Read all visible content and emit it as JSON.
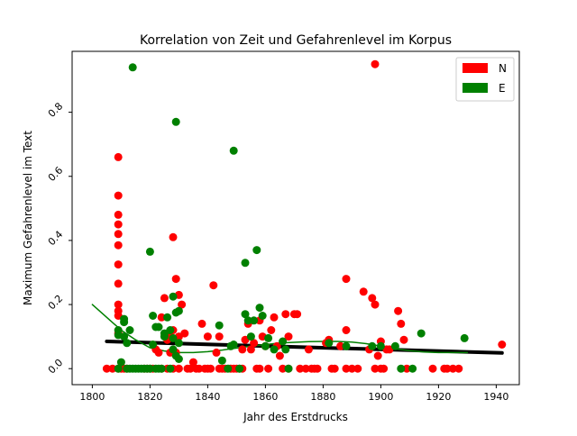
{
  "chart_data": {
    "type": "scatter",
    "title": "Korrelation von Zeit und Gefahrenlevel im Korpus",
    "xlabel": "Jahr des Erstdrucks",
    "ylabel": "Maximum Gefahrenlevel im Text",
    "xlim": [
      1793,
      1948
    ],
    "ylim": [
      -0.05,
      0.99
    ],
    "x_ticks": [
      1800,
      1820,
      1840,
      1860,
      1880,
      1900,
      1920,
      1940
    ],
    "y_ticks": [
      0.0,
      0.2,
      0.4,
      0.6,
      0.8
    ],
    "y_tick_labels": [
      "0.0",
      "0.2",
      "0.4",
      "0.6",
      "0.8"
    ],
    "grid": false,
    "legend_position": "top-right",
    "colors": {
      "N": "#ff0000",
      "E": "#008000",
      "trend": "#000000"
    },
    "series": [
      {
        "name": "N",
        "color": "#ff0000",
        "points": [
          [
            1805,
            0
          ],
          [
            1807,
            0
          ],
          [
            1809,
            0
          ],
          [
            1809,
            0.66
          ],
          [
            1809,
            0.54
          ],
          [
            1809,
            0.48
          ],
          [
            1809,
            0.45
          ],
          [
            1809,
            0.42
          ],
          [
            1809,
            0.385
          ],
          [
            1809,
            0.325
          ],
          [
            1809,
            0.265
          ],
          [
            1809,
            0.2
          ],
          [
            1809,
            0.18
          ],
          [
            1809,
            0.165
          ],
          [
            1809,
            0.11
          ],
          [
            1810,
            0
          ],
          [
            1811,
            0
          ],
          [
            1812,
            0
          ],
          [
            1818,
            0
          ],
          [
            1819,
            0
          ],
          [
            1820,
            0
          ],
          [
            1821,
            0
          ],
          [
            1822,
            0.06
          ],
          [
            1823,
            0.05
          ],
          [
            1824,
            0
          ],
          [
            1824,
            0.16
          ],
          [
            1825,
            0.22
          ],
          [
            1826,
            0.09
          ],
          [
            1826,
            0
          ],
          [
            1827,
            0.05
          ],
          [
            1827,
            0.1
          ],
          [
            1828,
            0.41
          ],
          [
            1828,
            0.12
          ],
          [
            1828,
            0
          ],
          [
            1829,
            0.28
          ],
          [
            1829,
            0.05
          ],
          [
            1830,
            0.23
          ],
          [
            1830,
            0.1
          ],
          [
            1830,
            0
          ],
          [
            1831,
            0.2
          ],
          [
            1832,
            0.11
          ],
          [
            1833,
            0
          ],
          [
            1834,
            0
          ],
          [
            1835,
            0.02
          ],
          [
            1836,
            0
          ],
          [
            1837,
            0
          ],
          [
            1838,
            0.14
          ],
          [
            1839,
            0
          ],
          [
            1840,
            0.1
          ],
          [
            1840,
            0
          ],
          [
            1841,
            0
          ],
          [
            1842,
            0.26
          ],
          [
            1843,
            0.05
          ],
          [
            1844,
            0.1
          ],
          [
            1844,
            0
          ],
          [
            1845,
            0
          ],
          [
            1846,
            0
          ],
          [
            1848,
            0
          ],
          [
            1849,
            0
          ],
          [
            1850,
            0
          ],
          [
            1851,
            0
          ],
          [
            1852,
            0.06
          ],
          [
            1852,
            0
          ],
          [
            1853,
            0.09
          ],
          [
            1854,
            0.14
          ],
          [
            1855,
            0.06
          ],
          [
            1856,
            0.08
          ],
          [
            1857,
            0
          ],
          [
            1858,
            0.15
          ],
          [
            1858,
            0
          ],
          [
            1859,
            0.1
          ],
          [
            1860,
            0.07
          ],
          [
            1861,
            0
          ],
          [
            1862,
            0.12
          ],
          [
            1863,
            0.16
          ],
          [
            1864,
            0.07
          ],
          [
            1865,
            0.04
          ],
          [
            1866,
            0
          ],
          [
            1867,
            0.17
          ],
          [
            1868,
            0.1
          ],
          [
            1868,
            0
          ],
          [
            1870,
            0.17
          ],
          [
            1871,
            0.17
          ],
          [
            1872,
            0
          ],
          [
            1874,
            0
          ],
          [
            1875,
            0.06
          ],
          [
            1876,
            0
          ],
          [
            1877,
            0
          ],
          [
            1878,
            0
          ],
          [
            1881,
            0.08
          ],
          [
            1882,
            0.09
          ],
          [
            1883,
            0
          ],
          [
            1884,
            0
          ],
          [
            1886,
            0.07
          ],
          [
            1888,
            0.28
          ],
          [
            1888,
            0.12
          ],
          [
            1888,
            0
          ],
          [
            1890,
            0
          ],
          [
            1892,
            0
          ],
          [
            1894,
            0.24
          ],
          [
            1896,
            0.06
          ],
          [
            1897,
            0.22
          ],
          [
            1898,
            0.95
          ],
          [
            1898,
            0.2
          ],
          [
            1898,
            0
          ],
          [
            1899,
            0.04
          ],
          [
            1900,
            0.085
          ],
          [
            1900,
            0
          ],
          [
            1901,
            0
          ],
          [
            1902,
            0.06
          ],
          [
            1903,
            0.06
          ],
          [
            1906,
            0.18
          ],
          [
            1907,
            0.14
          ],
          [
            1908,
            0.09
          ],
          [
            1909,
            0
          ],
          [
            1918,
            0
          ],
          [
            1922,
            0
          ],
          [
            1923,
            0
          ],
          [
            1925,
            0
          ],
          [
            1927,
            0
          ],
          [
            1942,
            0.075
          ]
        ]
      },
      {
        "name": "E",
        "color": "#008000",
        "points": [
          [
            1809,
            0.12
          ],
          [
            1809,
            0.105
          ],
          [
            1809,
            0
          ],
          [
            1810,
            0.02
          ],
          [
            1811,
            0.155
          ],
          [
            1811,
            0.145
          ],
          [
            1811,
            0.1
          ],
          [
            1812,
            0.08
          ],
          [
            1812,
            0
          ],
          [
            1813,
            0.12
          ],
          [
            1813,
            0
          ],
          [
            1814,
            0.94
          ],
          [
            1814,
            0
          ],
          [
            1815,
            0
          ],
          [
            1816,
            0
          ],
          [
            1817,
            0
          ],
          [
            1818,
            0
          ],
          [
            1819,
            0
          ],
          [
            1820,
            0.365
          ],
          [
            1820,
            0
          ],
          [
            1821,
            0.165
          ],
          [
            1821,
            0.075
          ],
          [
            1822,
            0.13
          ],
          [
            1822,
            0
          ],
          [
            1823,
            0.13
          ],
          [
            1823,
            0
          ],
          [
            1824,
            0
          ],
          [
            1825,
            0.11
          ],
          [
            1825,
            0.1
          ],
          [
            1826,
            0.16
          ],
          [
            1827,
            0.12
          ],
          [
            1827,
            0
          ],
          [
            1828,
            0.225
          ],
          [
            1828,
            0.095
          ],
          [
            1828,
            0.06
          ],
          [
            1829,
            0.77
          ],
          [
            1829,
            0.175
          ],
          [
            1829,
            0.04
          ],
          [
            1830,
            0.18
          ],
          [
            1830,
            0.08
          ],
          [
            1830,
            0.03
          ],
          [
            1844,
            0.135
          ],
          [
            1845,
            0.025
          ],
          [
            1847,
            0
          ],
          [
            1848,
            0.07
          ],
          [
            1849,
            0.68
          ],
          [
            1849,
            0.075
          ],
          [
            1851,
            0
          ],
          [
            1853,
            0.33
          ],
          [
            1853,
            0.17
          ],
          [
            1854,
            0.15
          ],
          [
            1855,
            0.1
          ],
          [
            1856,
            0.15
          ],
          [
            1857,
            0.37
          ],
          [
            1858,
            0.19
          ],
          [
            1859,
            0.165
          ],
          [
            1860,
            0.07
          ],
          [
            1861,
            0.095
          ],
          [
            1863,
            0.06
          ],
          [
            1866,
            0.085
          ],
          [
            1867,
            0.06
          ],
          [
            1868,
            0
          ],
          [
            1882,
            0.08
          ],
          [
            1888,
            0.07
          ],
          [
            1897,
            0.07
          ],
          [
            1900,
            0.07
          ],
          [
            1905,
            0.07
          ],
          [
            1907,
            0
          ],
          [
            1911,
            0
          ],
          [
            1914,
            0.11
          ],
          [
            1929,
            0.095
          ]
        ]
      }
    ],
    "fits": [
      {
        "kind": "linear",
        "color": "#000000",
        "points": [
          [
            1805,
            0.085
          ],
          [
            1942,
            0.049
          ]
        ]
      },
      {
        "kind": "polynomial",
        "color": "#008000",
        "points": [
          [
            1800,
            0.2
          ],
          [
            1805,
            0.16
          ],
          [
            1810,
            0.12
          ],
          [
            1815,
            0.09
          ],
          [
            1820,
            0.065
          ],
          [
            1825,
            0.055
          ],
          [
            1830,
            0.05
          ],
          [
            1835,
            0.05
          ],
          [
            1840,
            0.053
          ],
          [
            1845,
            0.058
          ],
          [
            1850,
            0.064
          ],
          [
            1855,
            0.07
          ],
          [
            1860,
            0.075
          ],
          [
            1865,
            0.08
          ],
          [
            1870,
            0.082
          ],
          [
            1875,
            0.084
          ],
          [
            1880,
            0.085
          ],
          [
            1885,
            0.085
          ],
          [
            1890,
            0.083
          ],
          [
            1895,
            0.078
          ],
          [
            1900,
            0.07
          ],
          [
            1905,
            0.062
          ],
          [
            1910,
            0.056
          ],
          [
            1915,
            0.052
          ],
          [
            1920,
            0.05
          ],
          [
            1925,
            0.05
          ],
          [
            1930,
            0.05
          ]
        ]
      }
    ],
    "legend": [
      {
        "label": "N",
        "color": "#ff0000"
      },
      {
        "label": "E",
        "color": "#008000"
      }
    ]
  }
}
